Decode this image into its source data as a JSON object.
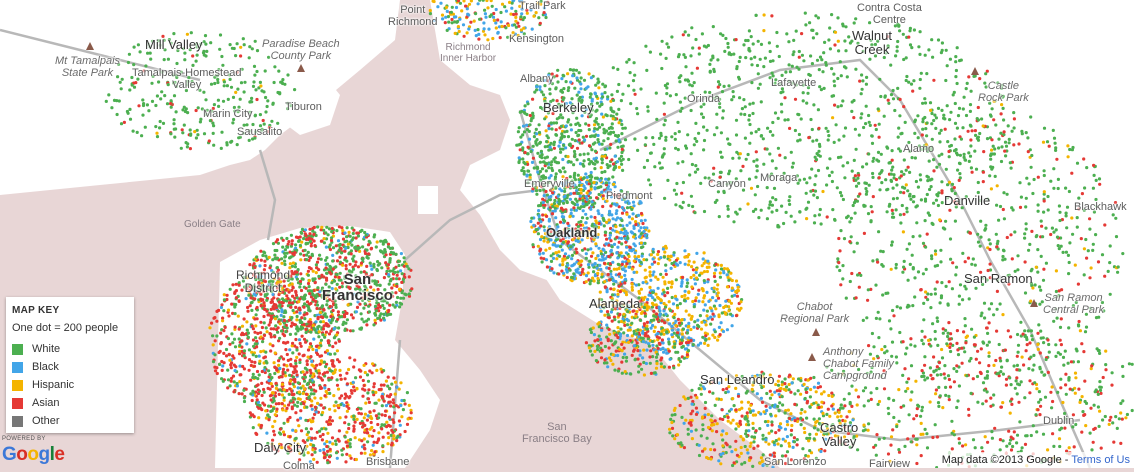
{
  "colors": {
    "land": "#ffffff",
    "water": "#e8d6d6",
    "road": "#b8b8b8",
    "white": "#4caf50",
    "black": "#42a5e8",
    "hispanic": "#f4b400",
    "asian": "#e53935",
    "other": "#777777"
  },
  "labels": {
    "mill_valley": "Mill Valley",
    "tamalpais_park": "Mt Tamalpais\nState Park",
    "paradise_beach": "Paradise Beach\nCounty Park",
    "tamalpais_homestead": "Tamalpais-Homestead\nValley",
    "tiburon": "Tiburon",
    "marin_city": "Marin City",
    "sausalito": "Sausalito",
    "point_richmond": "Point\nRichmond",
    "richmond_inner_harbor": "Richmond\nInner Harbor",
    "kensington": "Kensington",
    "trail_park": "Trail Park",
    "albany": "Albany",
    "berkeley": "Berkeley",
    "orinda": "Orinda",
    "lafayette": "Lafayette",
    "walnut_creek": "Walnut\nCreek",
    "contra_costa": "Contra Costa\nCentre",
    "castle_rock": "Castle\nRock Park",
    "alamo": "Alamo",
    "danville": "Danville",
    "blackhawk": "Blackhawk",
    "golden_gate": "Golden Gate",
    "emeryville": "Emeryville",
    "piedmont": "Piedmont",
    "canyon": "Canyon",
    "moraga": "Moraga",
    "oakland": "Oakland",
    "richmond_district": "Richmond\nDistrict",
    "san_francisco": "San\nFrancisco",
    "alameda": "Alameda",
    "chabot_regional": "Chabot\nRegional Park",
    "san_ramon": "San Ramon",
    "san_ramon_park": "San Ramon\nCentral Park",
    "anthony_chabot": "Anthony\nChabot Family\nCampground",
    "san_leandro": "San Leandro",
    "sf_bay": "San\nFrancisco Bay",
    "daly_city": "Daly City",
    "brisbane": "Brisbane",
    "castro_valley": "Castro\nValley",
    "dublin": "Dublin",
    "colma": "Colma",
    "san_lorenzo": "San Lorenzo",
    "fairview": "Fairview"
  },
  "legend": {
    "title": "MAP KEY",
    "note": "One dot = 200 people",
    "items": [
      {
        "label": "White",
        "color": "#4caf50"
      },
      {
        "label": "Black",
        "color": "#42a5e8"
      },
      {
        "label": "Hispanic",
        "color": "#f4b400"
      },
      {
        "label": "Asian",
        "color": "#e53935"
      },
      {
        "label": "Other",
        "color": "#777777"
      }
    ]
  },
  "branding": {
    "powered_by": "POWERED BY",
    "logo_letters": [
      {
        "ch": "G",
        "color": "#3c78d8"
      },
      {
        "ch": "o",
        "color": "#d93025"
      },
      {
        "ch": "o",
        "color": "#f4b400"
      },
      {
        "ch": "g",
        "color": "#3c78d8"
      },
      {
        "ch": "l",
        "color": "#188038"
      },
      {
        "ch": "e",
        "color": "#d93025"
      }
    ]
  },
  "attribution": {
    "text": "Map data ©2013 Google - ",
    "terms": "Terms of Us"
  }
}
